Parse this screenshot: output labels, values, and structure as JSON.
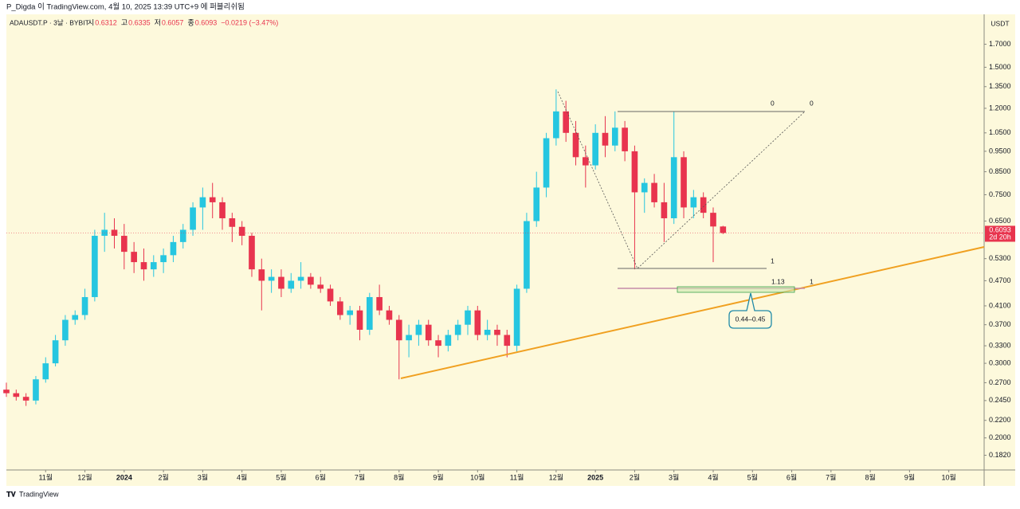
{
  "chart_data": {
    "type": "candlestick",
    "publisher_line": "P_Digda 이 TradingView.com, 4월 10, 2025 13:39 UTC+9 에 퍼블리쉬됨",
    "symbol": "ADAUSDT.P · 3날 · BYBIT",
    "ohlc_labels": [
      "시",
      "고",
      "저",
      "종"
    ],
    "change": "−0.0219 (−3.47%)",
    "y_unit": "USDT",
    "countdown": "2d 20h",
    "footer": "TradingView",
    "annotations": {
      "fib_top_left": "0",
      "fib_top_right": "0",
      "fib_one": "1",
      "fib_ext": "1.13",
      "fib_ext_right": "1",
      "zone": "0.44–0.45"
    },
    "up_color": "#26c6e0",
    "down_color": "#e8344e",
    "log_scale": true,
    "grid": false,
    "xlim": [
      0,
      24.9
    ],
    "xticks": [
      {
        "value": 1,
        "label": "11월"
      },
      {
        "value": 2,
        "label": "12월"
      },
      {
        "value": 3,
        "label": "2024"
      },
      {
        "value": 4,
        "label": "2월"
      },
      {
        "value": 5,
        "label": "3월"
      },
      {
        "value": 6,
        "label": "4월"
      },
      {
        "value": 7,
        "label": "5월"
      },
      {
        "value": 8,
        "label": "6월"
      },
      {
        "value": 9,
        "label": "7월"
      },
      {
        "value": 10,
        "label": "8월"
      },
      {
        "value": 11,
        "label": "9월"
      },
      {
        "value": 12,
        "label": "10월"
      },
      {
        "value": 13,
        "label": "11월"
      },
      {
        "value": 14,
        "label": "12월"
      },
      {
        "value": 15,
        "label": "2025"
      },
      {
        "value": 16,
        "label": "2월"
      },
      {
        "value": 17,
        "label": "3월"
      },
      {
        "value": 18,
        "label": "4월"
      },
      {
        "value": 19,
        "label": "5월"
      },
      {
        "value": 20,
        "label": "6월"
      },
      {
        "value": 21,
        "label": "7월"
      },
      {
        "value": 22,
        "label": "8월"
      },
      {
        "value": 23,
        "label": "9월"
      },
      {
        "value": 24,
        "label": "10월"
      }
    ],
    "ylim": [
      0.168,
      2.0
    ],
    "yticks": [
      {
        "value": 1.7,
        "label": "1.7000"
      },
      {
        "value": 1.5,
        "label": "1.5000"
      },
      {
        "value": 1.35,
        "label": "1.3500"
      },
      {
        "value": 1.2,
        "label": "1.2000"
      },
      {
        "value": 1.05,
        "label": "1.0500"
      },
      {
        "value": 0.95,
        "label": "0.9500"
      },
      {
        "value": 0.85,
        "label": "0.8500"
      },
      {
        "value": 0.75,
        "label": "0.7500"
      },
      {
        "value": 0.65,
        "label": "0.6500"
      },
      {
        "value": 0.53,
        "label": "0.5300"
      },
      {
        "value": 0.47,
        "label": "0.4700"
      },
      {
        "value": 0.41,
        "label": "0.4100"
      },
      {
        "value": 0.37,
        "label": "0.3700"
      },
      {
        "value": 0.33,
        "label": "0.3300"
      },
      {
        "value": 0.3,
        "label": "0.3000"
      },
      {
        "value": 0.27,
        "label": "0.2700"
      },
      {
        "value": 0.245,
        "label": "0.2450"
      },
      {
        "value": 0.22,
        "label": "0.2200"
      },
      {
        "value": 0.2,
        "label": "0.2000"
      },
      {
        "value": 0.182,
        "label": "0.1820"
      }
    ],
    "x": [
      0,
      0.25,
      0.5,
      0.75,
      1,
      1.25,
      1.5,
      1.75,
      2,
      2.25,
      2.5,
      2.75,
      3,
      3.25,
      3.5,
      3.75,
      4,
      4.25,
      4.5,
      4.75,
      5,
      5.25,
      5.5,
      5.75,
      6,
      6.25,
      6.5,
      6.75,
      7,
      7.25,
      7.5,
      7.75,
      8,
      8.25,
      8.5,
      8.75,
      9,
      9.25,
      9.5,
      9.75,
      10,
      10.25,
      10.5,
      10.75,
      11,
      11.25,
      11.5,
      11.75,
      12,
      12.25,
      12.5,
      12.75,
      13,
      13.25,
      13.5,
      13.75,
      14,
      14.25,
      14.5,
      14.75,
      15,
      15.25,
      15.5,
      15.75,
      16,
      16.25,
      16.5,
      16.75,
      17,
      17.25,
      17.5,
      17.75,
      18,
      18.25
    ],
    "candles": [
      [
        0.26,
        0.27,
        0.25,
        0.255
      ],
      [
        0.255,
        0.26,
        0.245,
        0.25
      ],
      [
        0.25,
        0.255,
        0.238,
        0.245
      ],
      [
        0.245,
        0.28,
        0.24,
        0.275
      ],
      [
        0.275,
        0.31,
        0.27,
        0.3
      ],
      [
        0.3,
        0.35,
        0.295,
        0.34
      ],
      [
        0.34,
        0.39,
        0.33,
        0.38
      ],
      [
        0.38,
        0.4,
        0.37,
        0.39
      ],
      [
        0.39,
        0.45,
        0.38,
        0.43
      ],
      [
        0.43,
        0.62,
        0.42,
        0.6
      ],
      [
        0.6,
        0.68,
        0.55,
        0.62
      ],
      [
        0.62,
        0.66,
        0.56,
        0.6
      ],
      [
        0.6,
        0.64,
        0.5,
        0.55
      ],
      [
        0.55,
        0.58,
        0.49,
        0.52
      ],
      [
        0.52,
        0.56,
        0.47,
        0.5
      ],
      [
        0.5,
        0.54,
        0.48,
        0.52
      ],
      [
        0.52,
        0.56,
        0.49,
        0.54
      ],
      [
        0.54,
        0.6,
        0.52,
        0.58
      ],
      [
        0.58,
        0.64,
        0.56,
        0.62
      ],
      [
        0.62,
        0.72,
        0.6,
        0.7
      ],
      [
        0.7,
        0.78,
        0.62,
        0.74
      ],
      [
        0.74,
        0.8,
        0.66,
        0.72
      ],
      [
        0.72,
        0.74,
        0.62,
        0.66
      ],
      [
        0.66,
        0.68,
        0.58,
        0.63
      ],
      [
        0.63,
        0.65,
        0.57,
        0.6
      ],
      [
        0.6,
        0.61,
        0.48,
        0.5
      ],
      [
        0.5,
        0.53,
        0.4,
        0.47
      ],
      [
        0.47,
        0.5,
        0.44,
        0.48
      ],
      [
        0.48,
        0.5,
        0.43,
        0.45
      ],
      [
        0.45,
        0.49,
        0.44,
        0.47
      ],
      [
        0.47,
        0.52,
        0.45,
        0.48
      ],
      [
        0.48,
        0.49,
        0.45,
        0.46
      ],
      [
        0.46,
        0.48,
        0.44,
        0.45
      ],
      [
        0.45,
        0.46,
        0.41,
        0.42
      ],
      [
        0.42,
        0.43,
        0.38,
        0.39
      ],
      [
        0.39,
        0.41,
        0.37,
        0.4
      ],
      [
        0.4,
        0.41,
        0.34,
        0.36
      ],
      [
        0.36,
        0.44,
        0.35,
        0.43
      ],
      [
        0.43,
        0.46,
        0.39,
        0.4
      ],
      [
        0.4,
        0.41,
        0.37,
        0.38
      ],
      [
        0.38,
        0.39,
        0.275,
        0.34
      ],
      [
        0.34,
        0.37,
        0.31,
        0.35
      ],
      [
        0.35,
        0.38,
        0.33,
        0.37
      ],
      [
        0.37,
        0.38,
        0.33,
        0.34
      ],
      [
        0.34,
        0.35,
        0.31,
        0.33
      ],
      [
        0.33,
        0.36,
        0.32,
        0.35
      ],
      [
        0.35,
        0.38,
        0.34,
        0.37
      ],
      [
        0.37,
        0.41,
        0.35,
        0.4
      ],
      [
        0.4,
        0.41,
        0.34,
        0.35
      ],
      [
        0.35,
        0.38,
        0.34,
        0.36
      ],
      [
        0.36,
        0.37,
        0.33,
        0.35
      ],
      [
        0.35,
        0.36,
        0.31,
        0.33
      ],
      [
        0.33,
        0.46,
        0.32,
        0.45
      ],
      [
        0.45,
        0.68,
        0.44,
        0.65
      ],
      [
        0.65,
        0.85,
        0.63,
        0.78
      ],
      [
        0.78,
        1.05,
        0.74,
        1.02
      ],
      [
        1.02,
        1.33,
        0.98,
        1.18
      ],
      [
        1.18,
        1.25,
        1.0,
        1.05
      ],
      [
        1.05,
        1.12,
        0.88,
        0.92
      ],
      [
        0.92,
        0.98,
        0.78,
        0.88
      ],
      [
        0.88,
        1.1,
        0.86,
        1.05
      ],
      [
        1.05,
        1.15,
        0.92,
        0.98
      ],
      [
        0.98,
        1.18,
        0.95,
        1.08
      ],
      [
        1.08,
        1.12,
        0.9,
        0.95
      ],
      [
        0.95,
        0.98,
        0.5,
        0.76
      ],
      [
        0.76,
        0.82,
        0.68,
        0.8
      ],
      [
        0.8,
        0.84,
        0.7,
        0.72
      ],
      [
        0.72,
        0.8,
        0.58,
        0.66
      ],
      [
        0.66,
        1.18,
        0.64,
        0.92
      ],
      [
        0.92,
        0.95,
        0.66,
        0.7
      ],
      [
        0.7,
        0.77,
        0.66,
        0.74
      ],
      [
        0.74,
        0.76,
        0.66,
        0.68
      ],
      [
        0.68,
        0.7,
        0.52,
        0.6312
      ],
      [
        0.6312,
        0.6335,
        0.6057,
        0.6093
      ]
    ]
  }
}
